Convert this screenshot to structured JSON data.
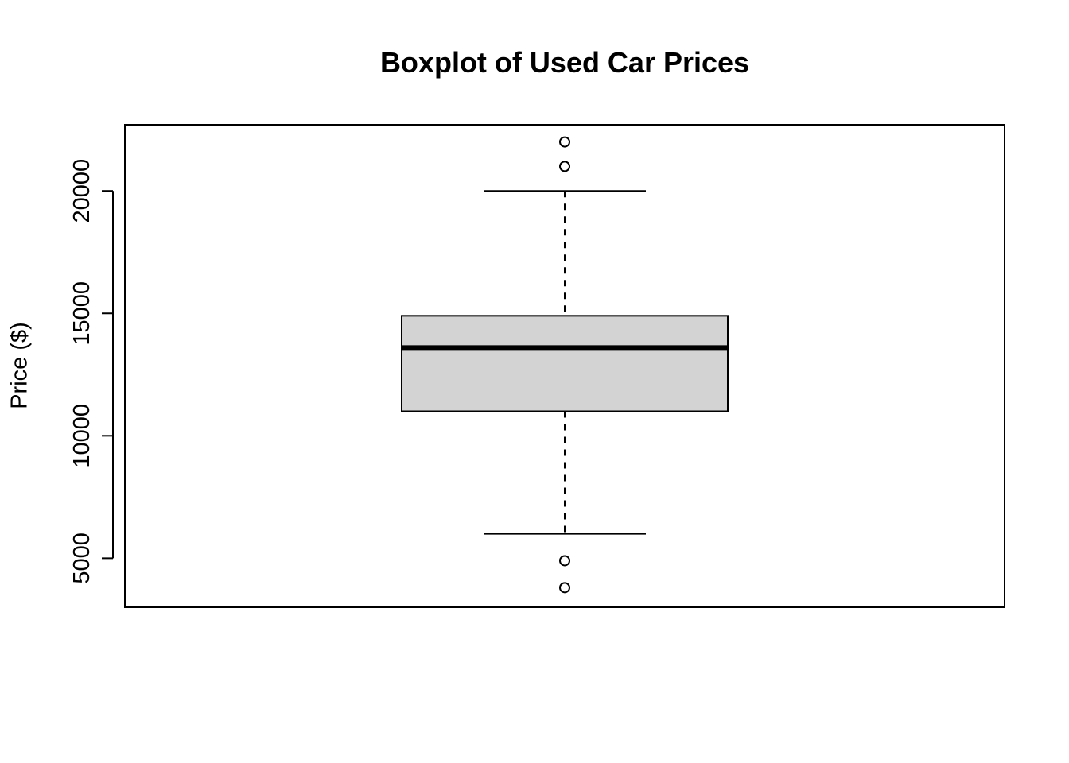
{
  "chart_data": {
    "type": "boxplot",
    "title": "Boxplot of Used Car Prices",
    "ylabel": "Price ($)",
    "xlabel": "",
    "ylim": [
      3000,
      22700
    ],
    "yticks": [
      5000,
      10000,
      15000,
      20000
    ],
    "grid": false,
    "box": {
      "whisker_low": 6000,
      "q1": 11000,
      "median": 13600,
      "q3": 14900,
      "whisker_high": 20000,
      "outliers": [
        3800,
        4900,
        21000,
        22000
      ],
      "fill": "#d3d3d3"
    }
  }
}
